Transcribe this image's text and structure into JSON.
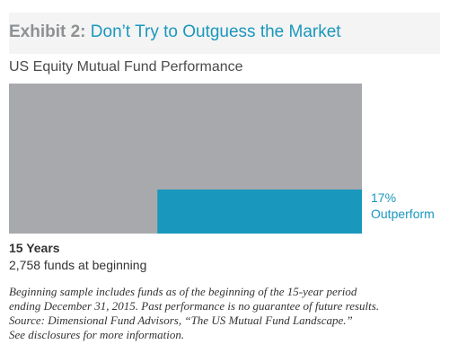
{
  "header": {
    "exhibit_label": "Exhibit 2:",
    "title": "Don’t Try to Outguess the Market"
  },
  "chart_data": {
    "type": "bar",
    "title": "US Equity Mutual Fund Performance",
    "total_funds": 2758,
    "outperform_percent": 17,
    "outperform_value_label": "17%",
    "outperform_label": "Outperform",
    "period_label": "15 Years",
    "funds_label": "2,758 funds at beginning",
    "colors": {
      "total": "#a7a9ac",
      "outperform": "#1a97bd"
    }
  },
  "footnotes": [
    "Beginning sample includes funds as of the beginning of the 15-year period",
    "ending December 31, 2015. Past performance is no guarantee of future results.",
    "Source: Dimensional Fund Advisors, “The US Mutual Fund Landscape.”",
    "See disclosures for more information."
  ]
}
